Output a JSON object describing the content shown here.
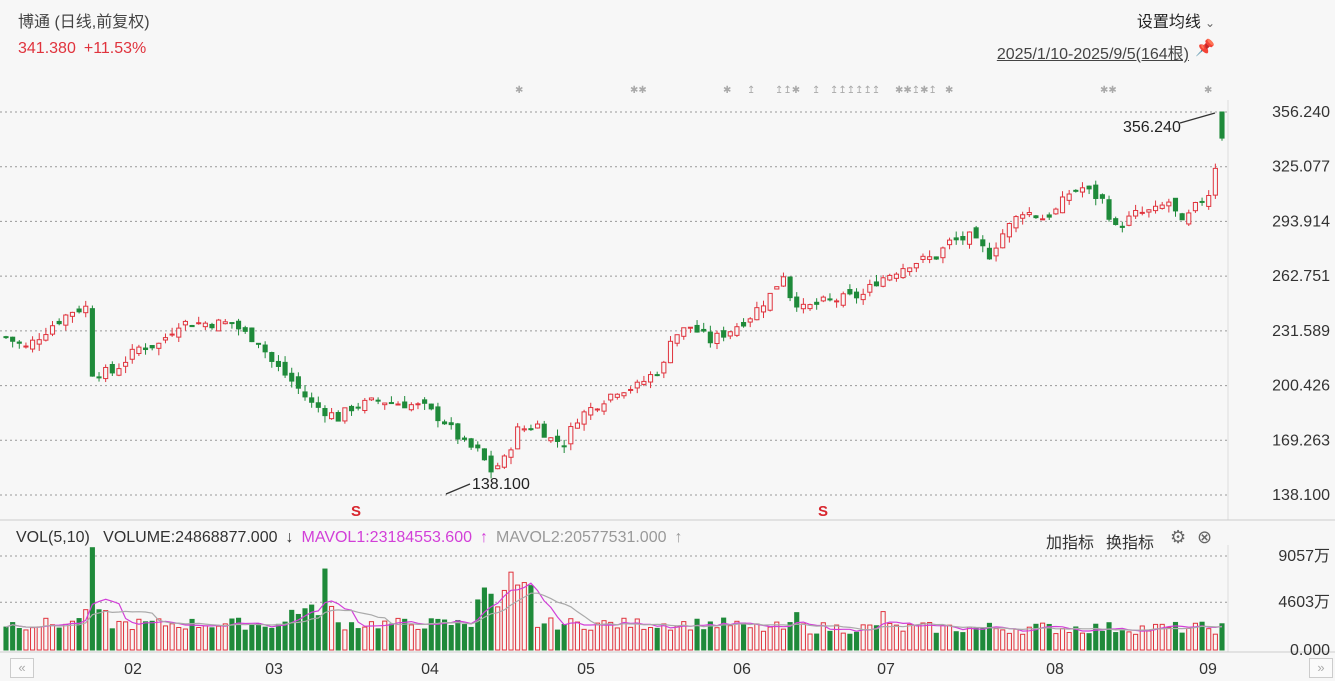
{
  "header": {
    "title": "博通 (日线,前复权)",
    "price": "341.380",
    "change": "+11.53%",
    "ma_settings_label": "设置均线",
    "date_range": "2025/1/10-2025/9/5(164根)"
  },
  "volume_header": {
    "label": "VOL(5,10)",
    "volume": "VOLUME:24868877.000",
    "volume_arrow": "↓",
    "mavol1": "MAVOL1:23184553.600",
    "mavol1_arrow": "↑",
    "mavol2": "MAVOL2:20577531.000",
    "mavol2_arrow": "↑"
  },
  "toolbar": {
    "add_indicator": "加指标",
    "switch_indicator": "换指标"
  },
  "annotations": {
    "high_label": "356.240",
    "low_label": "138.100",
    "marker": "S"
  },
  "colors": {
    "up": "#e0333d",
    "down": "#1f8a3a",
    "mavol1": "#d23fd8",
    "mavol2": "#aaaaaa",
    "grid": "#999999"
  },
  "chart_data": [
    {
      "type": "candlestick",
      "title": "博通 (日线,前复权)",
      "y_ticks": [
        "356.240",
        "325.077",
        "293.914",
        "262.751",
        "231.589",
        "200.426",
        "169.263",
        "138.100"
      ],
      "ylim": [
        138.1,
        356.24
      ],
      "x_ticks": [
        "02",
        "03",
        "04",
        "05",
        "06",
        "07",
        "08",
        "09"
      ],
      "grid": true,
      "anchors": [
        [
          0,
          228
        ],
        [
          3,
          222
        ],
        [
          7,
          235
        ],
        [
          10,
          243
        ],
        [
          12,
          245
        ],
        [
          13,
          208
        ],
        [
          16,
          208
        ],
        [
          20,
          222
        ],
        [
          23,
          224
        ],
        [
          26,
          236
        ],
        [
          30,
          236
        ],
        [
          34,
          236
        ],
        [
          36,
          230
        ],
        [
          38,
          226
        ],
        [
          40,
          214
        ],
        [
          43,
          203
        ],
        [
          46,
          190
        ],
        [
          50,
          182
        ],
        [
          52,
          188
        ],
        [
          56,
          192
        ],
        [
          60,
          190
        ],
        [
          63,
          188
        ],
        [
          66,
          180
        ],
        [
          69,
          167
        ],
        [
          71,
          163
        ],
        [
          73,
          152
        ],
        [
          75,
          158
        ],
        [
          77,
          175
        ],
        [
          80,
          178
        ],
        [
          82,
          170
        ],
        [
          84,
          168
        ],
        [
          86,
          182
        ],
        [
          89,
          190
        ],
        [
          92,
          198
        ],
        [
          95,
          200
        ],
        [
          97,
          206
        ],
        [
          99,
          212
        ],
        [
          100,
          228
        ],
        [
          103,
          234
        ],
        [
          106,
          226
        ],
        [
          109,
          232
        ],
        [
          112,
          240
        ],
        [
          115,
          252
        ],
        [
          117,
          264
        ],
        [
          118,
          252
        ],
        [
          120,
          244
        ],
        [
          123,
          248
        ],
        [
          126,
          250
        ],
        [
          129,
          252
        ],
        [
          131,
          260
        ],
        [
          133,
          264
        ],
        [
          136,
          270
        ],
        [
          140,
          274
        ],
        [
          142,
          282
        ],
        [
          145,
          285
        ],
        [
          148,
          275
        ],
        [
          150,
          287
        ],
        [
          153,
          300
        ],
        [
          156,
          296
        ],
        [
          158,
          300
        ],
        [
          160,
          310
        ],
        [
          162,
          313
        ],
        [
          165,
          306
        ],
        [
          167,
          290
        ],
        [
          170,
          298
        ],
        [
          173,
          300
        ],
        [
          175,
          305
        ],
        [
          177,
          292
        ],
        [
          179,
          302
        ],
        [
          181,
          310
        ],
        [
          183,
          341.38
        ]
      ],
      "high": 356.24,
      "low": 138.1
    },
    {
      "type": "bar",
      "title": "VOL(5,10)",
      "y_ticks": [
        "9057万",
        "4603万",
        "0.000"
      ],
      "ylim": [
        0,
        9057
      ],
      "series": [
        {
          "name": "MAVOL1",
          "value": 23184553.6
        },
        {
          "name": "MAVOL2",
          "value": 20577531.0
        }
      ],
      "last_volume": 24868877
    }
  ]
}
